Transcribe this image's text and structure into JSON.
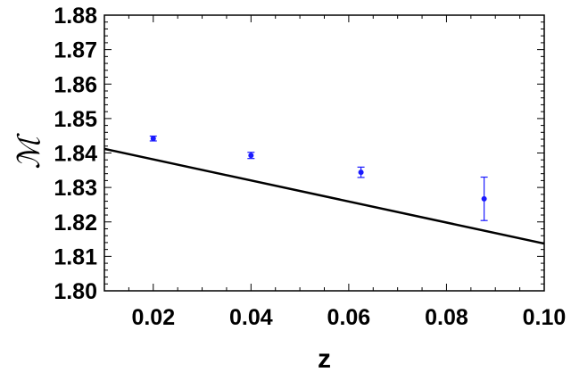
{
  "chart_data": {
    "type": "scatter",
    "xlabel": "z",
    "ylabel": "ℳ",
    "xlim": [
      0.01,
      0.1
    ],
    "ylim": [
      1.8,
      1.88
    ],
    "xticks": [
      "0.02",
      "0.04",
      "0.06",
      "0.08",
      "0.10"
    ],
    "yticks": [
      "1.80",
      "1.81",
      "1.82",
      "1.83",
      "1.84",
      "1.85",
      "1.86",
      "1.87",
      "1.88"
    ],
    "xtick_values": [
      0.02,
      0.04,
      0.06,
      0.08,
      0.1
    ],
    "ytick_values": [
      1.8,
      1.81,
      1.82,
      1.83,
      1.84,
      1.85,
      1.86,
      1.87,
      1.88
    ],
    "grid": false,
    "frame": "box",
    "series": [
      {
        "kind": "points-with-errorbars",
        "color": "#1a1aff",
        "points": [
          {
            "x": 0.02,
            "y": 1.8442,
            "err": 0.0007
          },
          {
            "x": 0.04,
            "y": 1.8393,
            "err": 0.0009
          },
          {
            "x": 0.0625,
            "y": 1.8344,
            "err": 0.0015
          },
          {
            "x": 0.0877,
            "y": 1.8267,
            "err": 0.0063
          }
        ]
      },
      {
        "kind": "line",
        "color": "#000000",
        "x": [
          0.01,
          0.1
        ],
        "y": [
          1.8412,
          1.8137
        ]
      }
    ]
  }
}
